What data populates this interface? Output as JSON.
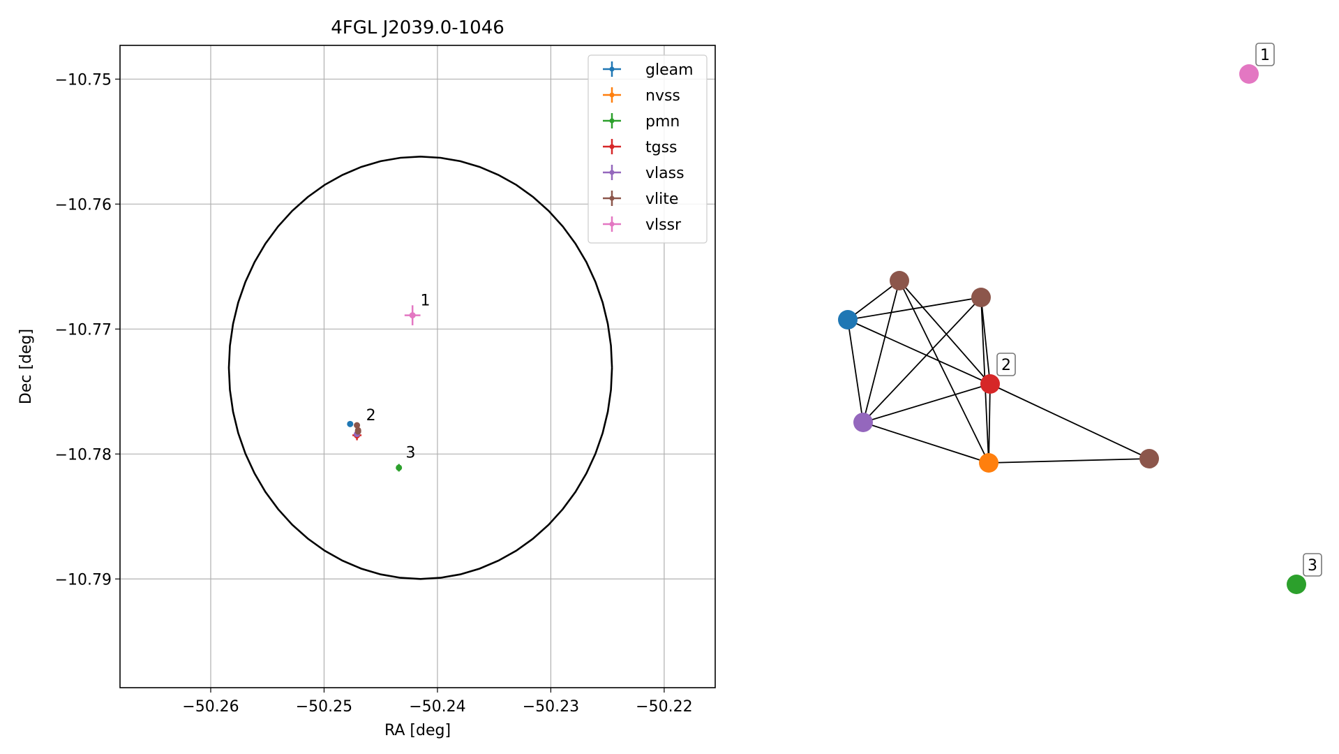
{
  "chart_data": [
    {
      "type": "scatter",
      "title": "4FGL J2039.0-1046",
      "xlabel": "RA [deg]",
      "ylabel": "Dec [deg]",
      "xlim": [
        -50.268,
        -50.2155
      ],
      "ylim": [
        -10.7987,
        -10.7473
      ],
      "xticks": [
        -50.26,
        -50.25,
        -50.24,
        -50.23,
        -50.22
      ],
      "xtick_labels": [
        "−50.26",
        "−50.25",
        "−50.24",
        "−50.23",
        "−50.22"
      ],
      "yticks": [
        -10.75,
        -10.76,
        -10.77,
        -10.78,
        -10.79
      ],
      "ytick_labels": [
        "−10.75",
        "−10.76",
        "−10.77",
        "−10.78",
        "−10.79"
      ],
      "grid": true,
      "legend_position": "upper-right",
      "circle": {
        "center_ra": -50.2415,
        "center_dec": -10.7731,
        "radius_deg": 0.0169
      },
      "series": [
        {
          "name": "gleam",
          "color": "#1f77b4",
          "points": [
            {
              "ra": -50.2477,
              "dec": -10.7776,
              "ra_err": 0.0001,
              "dec_err": 0.0001
            }
          ]
        },
        {
          "name": "nvss",
          "color": "#ff7f0e",
          "points": [
            {
              "ra": -50.2471,
              "dec": -10.7785,
              "ra_err": 0.0002,
              "dec_err": 0.0002
            }
          ]
        },
        {
          "name": "pmn",
          "color": "#2ca02c",
          "points": [
            {
              "ra": -50.2434,
              "dec": -10.7811,
              "ra_err": 0.0002,
              "dec_err": 0.0003
            }
          ]
        },
        {
          "name": "tgss",
          "color": "#d62728",
          "points": [
            {
              "ra": -50.2471,
              "dec": -10.7785,
              "ra_err": 0.0004,
              "dec_err": 0.0004
            }
          ]
        },
        {
          "name": "vlass",
          "color": "#9467bd",
          "points": [
            {
              "ra": -50.2471,
              "dec": -10.7784,
              "ra_err": 0.0001,
              "dec_err": 0.0001
            }
          ]
        },
        {
          "name": "vlite",
          "color": "#8c564b",
          "points": [
            {
              "ra": -50.2471,
              "dec": -10.7777,
              "ra_err": 0.0001,
              "dec_err": 0.0001
            },
            {
              "ra": -50.247,
              "dec": -10.7781,
              "ra_err": 0.0002,
              "dec_err": 0.0002
            },
            {
              "ra": -50.247,
              "dec": -10.7782,
              "ra_err": 0.0001,
              "dec_err": 0.0001
            }
          ]
        },
        {
          "name": "vlssr",
          "color": "#e377c2",
          "points": [
            {
              "ra": -50.2422,
              "dec": -10.7689,
              "ra_err": 0.0007,
              "dec_err": 0.0008
            }
          ]
        }
      ],
      "annotations": [
        {
          "text": "1",
          "ra": -50.2415,
          "dec": -10.7681
        },
        {
          "text": "2",
          "ra": -50.2463,
          "dec": -10.7773
        },
        {
          "text": "3",
          "ra": -50.2428,
          "dec": -10.7803
        }
      ]
    },
    {
      "type": "network",
      "nodes": [
        {
          "id": "gleam",
          "color": "#1f77b4"
        },
        {
          "id": "vlite_a",
          "color": "#8c564b"
        },
        {
          "id": "vlite_b",
          "color": "#8c564b"
        },
        {
          "id": "tgss",
          "color": "#d62728"
        },
        {
          "id": "vlass",
          "color": "#9467bd"
        },
        {
          "id": "nvss",
          "color": "#ff7f0e"
        },
        {
          "id": "vlite_c",
          "color": "#8c564b"
        },
        {
          "id": "vlssr",
          "color": "#e377c2"
        },
        {
          "id": "pmn",
          "color": "#2ca02c"
        }
      ],
      "edges": [
        [
          "gleam",
          "vlite_a"
        ],
        [
          "gleam",
          "vlite_b"
        ],
        [
          "gleam",
          "tgss"
        ],
        [
          "gleam",
          "vlass"
        ],
        [
          "vlite_a",
          "vlass"
        ],
        [
          "vlite_a",
          "tgss"
        ],
        [
          "vlite_a",
          "nvss"
        ],
        [
          "vlite_b",
          "vlass"
        ],
        [
          "vlite_b",
          "tgss"
        ],
        [
          "vlite_b",
          "nvss"
        ],
        [
          "vlass",
          "tgss"
        ],
        [
          "vlass",
          "nvss"
        ],
        [
          "tgss",
          "nvss"
        ],
        [
          "tgss",
          "vlite_c"
        ],
        [
          "nvss",
          "vlite_c"
        ]
      ],
      "labels": [
        {
          "text": "1",
          "node": "vlssr"
        },
        {
          "text": "2",
          "node": "tgss"
        },
        {
          "text": "3",
          "node": "pmn"
        }
      ]
    }
  ]
}
